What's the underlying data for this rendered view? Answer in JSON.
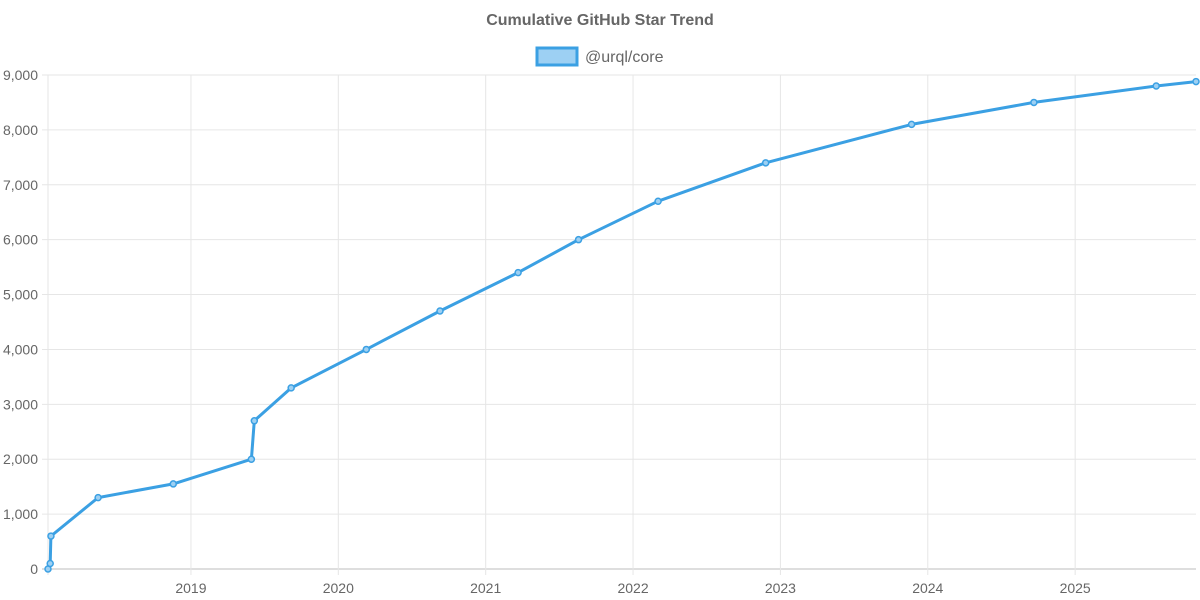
{
  "chart_data": {
    "type": "line",
    "title": "Cumulative GitHub Star Trend",
    "xlabel": "",
    "ylabel": "",
    "ylim": [
      0,
      9000
    ],
    "y_ticks": [
      0,
      1000,
      2000,
      3000,
      4000,
      5000,
      6000,
      7000,
      8000,
      9000
    ],
    "y_tick_labels": [
      "0",
      "1,000",
      "2,000",
      "3,000",
      "4,000",
      "5,000",
      "6,000",
      "7,000",
      "8,000",
      "9,000"
    ],
    "xlim": [
      2018.03,
      2025.82
    ],
    "x_ticks": [
      2019,
      2020,
      2021,
      2022,
      2023,
      2024,
      2025
    ],
    "x_tick_labels": [
      "2019",
      "2020",
      "2021",
      "2022",
      "2023",
      "2024",
      "2025"
    ],
    "grid": true,
    "legend_position": "top",
    "series": [
      {
        "name": "@urql/core",
        "color": "#3ba0e3",
        "fill": "#9dd0f3",
        "x": [
          2018.03,
          2018.045,
          2018.05,
          2018.37,
          2018.88,
          2019.41,
          2019.43,
          2019.68,
          2020.19,
          2020.69,
          2021.22,
          2021.63,
          2022.17,
          2022.9,
          2023.89,
          2024.72,
          2025.55,
          2025.82
        ],
        "y": [
          0,
          100,
          600,
          1300,
          1550,
          2000,
          2700,
          3300,
          4000,
          4700,
          5400,
          6000,
          6700,
          7400,
          8100,
          8500,
          8800,
          8880
        ]
      }
    ]
  }
}
